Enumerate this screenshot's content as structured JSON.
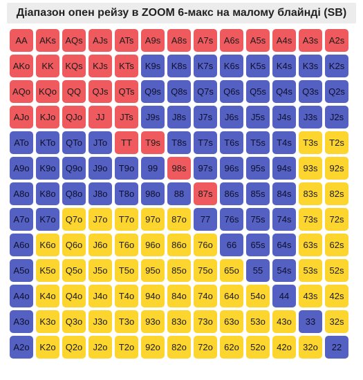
{
  "title": "Діапазон опен рейзу в ZOOM 6-макс на малому блайнді (SB)",
  "colors": {
    "red": "#ee5a5e",
    "blue": "#5561c2",
    "yellow": "#fdd52f"
  },
  "grid": {
    "rows": [
      {
        "hands": [
          "AA",
          "AKs",
          "AQs",
          "AJs",
          "ATs",
          "A9s",
          "A8s",
          "A7s",
          "A6s",
          "A5s",
          "A4s",
          "A3s",
          "A2s"
        ],
        "colors": [
          "red",
          "red",
          "red",
          "red",
          "red",
          "red",
          "red",
          "red",
          "red",
          "red",
          "red",
          "red",
          "red"
        ]
      },
      {
        "hands": [
          "AKo",
          "KK",
          "KQs",
          "KJs",
          "KTs",
          "K9s",
          "K8s",
          "K7s",
          "K6s",
          "K5s",
          "K4s",
          "K3s",
          "K2s"
        ],
        "colors": [
          "red",
          "red",
          "red",
          "red",
          "red",
          "blue",
          "blue",
          "blue",
          "blue",
          "blue",
          "blue",
          "blue",
          "blue"
        ]
      },
      {
        "hands": [
          "AQo",
          "KQo",
          "QQ",
          "QJs",
          "QTs",
          "Q9s",
          "Q8s",
          "Q7s",
          "Q6s",
          "Q5s",
          "Q4s",
          "Q3s",
          "Q2s"
        ],
        "colors": [
          "red",
          "red",
          "red",
          "red",
          "red",
          "blue",
          "blue",
          "blue",
          "blue",
          "blue",
          "blue",
          "blue",
          "blue"
        ]
      },
      {
        "hands": [
          "AJo",
          "KJo",
          "QJo",
          "JJ",
          "JTs",
          "J9s",
          "J8s",
          "J7s",
          "J6s",
          "J5s",
          "J4s",
          "J3s",
          "J2s"
        ],
        "colors": [
          "red",
          "red",
          "red",
          "red",
          "red",
          "blue",
          "blue",
          "blue",
          "blue",
          "blue",
          "blue",
          "blue",
          "blue"
        ]
      },
      {
        "hands": [
          "ATo",
          "KTo",
          "QTo",
          "JTo",
          "TT",
          "T9s",
          "T8s",
          "T7s",
          "T6s",
          "T5s",
          "T4s",
          "T3s",
          "T2s"
        ],
        "colors": [
          "blue",
          "blue",
          "blue",
          "blue",
          "red",
          "red",
          "blue",
          "blue",
          "blue",
          "blue",
          "blue",
          "yellow",
          "yellow"
        ]
      },
      {
        "hands": [
          "A9o",
          "K9o",
          "Q9o",
          "J9o",
          "T9o",
          "99",
          "98s",
          "97s",
          "96s",
          "95s",
          "94s",
          "93s",
          "92s"
        ],
        "colors": [
          "blue",
          "blue",
          "blue",
          "blue",
          "blue",
          "blue",
          "red",
          "blue",
          "blue",
          "blue",
          "blue",
          "yellow",
          "yellow"
        ]
      },
      {
        "hands": [
          "A8o",
          "K8o",
          "Q8o",
          "J8o",
          "T8o",
          "98o",
          "88",
          "87s",
          "86s",
          "85s",
          "84s",
          "83s",
          "82s"
        ],
        "colors": [
          "blue",
          "blue",
          "blue",
          "blue",
          "blue",
          "blue",
          "blue",
          "red",
          "blue",
          "blue",
          "blue",
          "yellow",
          "yellow"
        ]
      },
      {
        "hands": [
          "A7o",
          "K7o",
          "Q7o",
          "J7o",
          "T7o",
          "97o",
          "87o",
          "77",
          "76s",
          "75s",
          "74s",
          "73s",
          "72s"
        ],
        "colors": [
          "blue",
          "blue",
          "yellow",
          "yellow",
          "yellow",
          "yellow",
          "yellow",
          "blue",
          "blue",
          "blue",
          "blue",
          "yellow",
          "yellow"
        ]
      },
      {
        "hands": [
          "A6o",
          "K6o",
          "Q6o",
          "J6o",
          "T6o",
          "96o",
          "86o",
          "76o",
          "66",
          "65s",
          "64s",
          "63s",
          "62s"
        ],
        "colors": [
          "blue",
          "yellow",
          "yellow",
          "yellow",
          "yellow",
          "yellow",
          "yellow",
          "yellow",
          "blue",
          "blue",
          "blue",
          "yellow",
          "yellow"
        ]
      },
      {
        "hands": [
          "A5o",
          "K5o",
          "Q5o",
          "J5o",
          "T5o",
          "95o",
          "85o",
          "75o",
          "65o",
          "55",
          "54s",
          "53s",
          "52s"
        ],
        "colors": [
          "blue",
          "yellow",
          "yellow",
          "yellow",
          "yellow",
          "yellow",
          "yellow",
          "yellow",
          "yellow",
          "blue",
          "blue",
          "yellow",
          "yellow"
        ]
      },
      {
        "hands": [
          "A4o",
          "K4o",
          "Q4o",
          "J4o",
          "T4o",
          "94o",
          "84o",
          "74o",
          "64o",
          "54o",
          "44",
          "43s",
          "42s"
        ],
        "colors": [
          "blue",
          "yellow",
          "yellow",
          "yellow",
          "yellow",
          "yellow",
          "yellow",
          "yellow",
          "yellow",
          "yellow",
          "blue",
          "yellow",
          "yellow"
        ]
      },
      {
        "hands": [
          "A3o",
          "K3o",
          "Q3o",
          "J3o",
          "T3o",
          "93o",
          "83o",
          "73o",
          "63o",
          "53o",
          "43o",
          "33",
          "32s"
        ],
        "colors": [
          "blue",
          "yellow",
          "yellow",
          "yellow",
          "yellow",
          "yellow",
          "yellow",
          "yellow",
          "yellow",
          "yellow",
          "yellow",
          "blue",
          "yellow"
        ]
      },
      {
        "hands": [
          "A2o",
          "K2o",
          "Q2o",
          "J2o",
          "T2o",
          "92o",
          "82o",
          "72o",
          "62o",
          "52o",
          "42o",
          "32o",
          "22"
        ],
        "colors": [
          "blue",
          "yellow",
          "yellow",
          "yellow",
          "yellow",
          "yellow",
          "yellow",
          "yellow",
          "yellow",
          "yellow",
          "yellow",
          "yellow",
          "blue"
        ]
      }
    ]
  }
}
